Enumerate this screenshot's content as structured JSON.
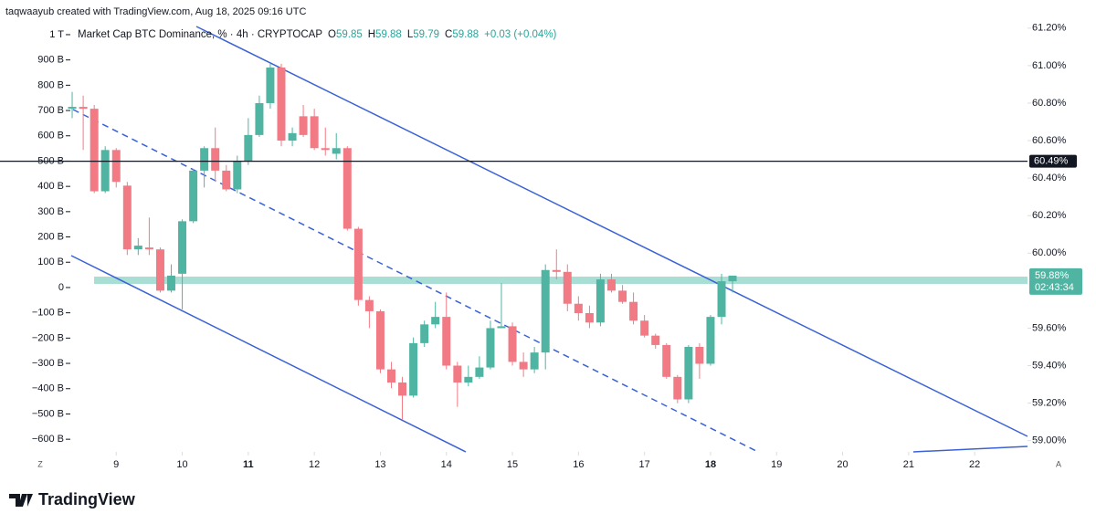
{
  "header": {
    "credit": "taqwaayub created with TradingView.com, Aug 18, 2025 09:16 UTC"
  },
  "logo": {
    "text": "TradingView"
  },
  "buttons": {
    "left": "Z",
    "right": "A"
  },
  "legend": {
    "title": "Market Cap BTC Dominance, % · 4h · CRYPTOCAP",
    "items": [
      {
        "key": "O",
        "value": "59.85"
      },
      {
        "key": "H",
        "value": "59.88"
      },
      {
        "key": "L",
        "value": "59.79"
      },
      {
        "key": "C",
        "value": "59.88"
      }
    ],
    "change": "+0.03 (+0.04%)"
  },
  "chart_data": {
    "type": "candlestick",
    "up_color": "#4fb5a2",
    "down_color": "#f27a85",
    "x": [
      8.333,
      8.5,
      8.667,
      8.833,
      9,
      9.167,
      9.333,
      9.5,
      9.667,
      9.833,
      10,
      10.167,
      10.333,
      10.5,
      10.667,
      10.833,
      11,
      11.167,
      11.333,
      11.5,
      11.667,
      11.833,
      12,
      12.167,
      12.333,
      12.5,
      12.667,
      12.833,
      13,
      13.167,
      13.333,
      13.5,
      13.667,
      13.833,
      14,
      14.167,
      14.333,
      14.5,
      14.667,
      14.833,
      15,
      15.167,
      15.333,
      15.5,
      15.667,
      15.833,
      16,
      16.167,
      16.333,
      16.5,
      16.667,
      16.833,
      17,
      17.167,
      17.333,
      17.5,
      17.667,
      17.833,
      18,
      18.167,
      18.333
    ],
    "open": [
      60.77,
      60.78,
      60.77,
      60.33,
      60.55,
      60.36,
      60.02,
      60.03,
      60.02,
      59.8,
      59.89,
      60.17,
      60.44,
      60.56,
      60.44,
      60.34,
      60.49,
      60.63,
      60.8,
      60.99,
      60.6,
      60.73,
      60.73,
      60.56,
      60.53,
      60.56,
      60.13,
      59.75,
      59.69,
      59.38,
      59.31,
      59.24,
      59.52,
      59.62,
      59.66,
      59.4,
      59.31,
      59.34,
      59.39,
      59.6,
      59.61,
      59.42,
      59.38,
      59.47,
      59.91,
      59.9,
      59.73,
      59.68,
      59.63,
      59.86,
      59.8,
      59.74,
      59.64,
      59.56,
      59.51,
      59.34,
      59.22,
      59.5,
      59.41,
      59.66,
      59.85
    ],
    "high": [
      60.86,
      60.84,
      60.79,
      60.57,
      60.56,
      60.38,
      60.08,
      60.19,
      60.03,
      59.94,
      60.18,
      60.45,
      60.57,
      60.67,
      60.47,
      60.52,
      60.72,
      60.84,
      61.01,
      61.01,
      60.67,
      60.79,
      60.77,
      60.67,
      60.64,
      60.57,
      60.14,
      59.77,
      59.7,
      59.42,
      59.34,
      59.55,
      59.64,
      59.74,
      59.79,
      59.42,
      59.4,
      59.45,
      59.64,
      59.84,
      59.63,
      59.47,
      59.5,
      59.94,
      60.02,
      59.94,
      59.77,
      59.72,
      59.89,
      59.89,
      59.83,
      59.79,
      59.67,
      59.57,
      59.52,
      59.35,
      59.51,
      59.52,
      59.67,
      59.89,
      59.88
    ],
    "low": [
      60.72,
      60.55,
      60.32,
      60.32,
      60.35,
      59.99,
      59.99,
      59.99,
      59.79,
      59.79,
      59.7,
      60.16,
      60.35,
      60.38,
      60.33,
      60.32,
      60.47,
      60.62,
      60.77,
      60.57,
      60.57,
      60.62,
      60.55,
      60.52,
      60.5,
      60.12,
      59.72,
      59.6,
      59.36,
      59.28,
      59.11,
      59.23,
      59.5,
      59.6,
      59.38,
      59.18,
      59.29,
      59.33,
      59.38,
      59.6,
      59.4,
      59.34,
      59.36,
      59.38,
      59.86,
      59.69,
      59.64,
      59.6,
      59.61,
      59.79,
      59.73,
      59.62,
      59.55,
      59.49,
      59.33,
      59.2,
      59.2,
      59.33,
      59.4,
      59.62,
      59.79
    ],
    "close": [
      60.78,
      60.77,
      60.33,
      60.55,
      60.38,
      60.02,
      60.04,
      60.02,
      59.8,
      59.88,
      60.17,
      60.44,
      60.56,
      60.44,
      60.34,
      60.49,
      60.63,
      60.8,
      60.99,
      60.6,
      60.64,
      60.63,
      60.56,
      60.55,
      60.56,
      60.13,
      59.75,
      59.69,
      59.38,
      59.31,
      59.24,
      59.52,
      59.62,
      59.66,
      59.4,
      59.31,
      59.34,
      59.39,
      59.6,
      59.61,
      59.42,
      59.38,
      59.47,
      59.91,
      59.9,
      59.73,
      59.68,
      59.63,
      59.86,
      59.8,
      59.74,
      59.64,
      59.56,
      59.51,
      59.34,
      59.22,
      59.5,
      59.41,
      59.66,
      59.85,
      59.88
    ],
    "xlim": [
      7.24,
      22.8
    ],
    "xticks": [
      9,
      10,
      11,
      12,
      13,
      14,
      15,
      16,
      17,
      18,
      19,
      20,
      21,
      22
    ],
    "xticks_bold": [
      11,
      18
    ],
    "ylim": [
      58.94,
      61.35
    ],
    "yticks": [
      {
        "value": 59.0,
        "label": "59.00%"
      },
      {
        "value": 59.2,
        "label": "59.20%"
      },
      {
        "value": 59.4,
        "label": "59.40%"
      },
      {
        "value": 59.6,
        "label": "59.60%"
      },
      {
        "value": 60.0,
        "label": "60.00%"
      },
      {
        "value": 60.2,
        "label": "60.20%"
      },
      {
        "value": 60.4,
        "label": "60.40%"
      },
      {
        "value": 60.6,
        "label": "60.60%"
      },
      {
        "value": 60.8,
        "label": "60.80%"
      },
      {
        "value": 61.0,
        "label": "61.00%"
      },
      {
        "value": 61.2,
        "label": "61.20%"
      }
    ],
    "y2lim": [
      -650,
      1137
    ],
    "y2ticks": [
      {
        "value": -600,
        "label": "−600 B"
      },
      {
        "value": -500,
        "label": "−500 B"
      },
      {
        "value": -400,
        "label": "−400 B"
      },
      {
        "value": -300,
        "label": "−300 B"
      },
      {
        "value": -200,
        "label": "−200 B"
      },
      {
        "value": -100,
        "label": "−100 B"
      },
      0,
      {
        "value": 100,
        "label": "100 B"
      },
      {
        "value": 200,
        "label": "200 B"
      },
      {
        "value": 300,
        "label": "300 B"
      },
      {
        "value": 400,
        "label": "400 B"
      },
      {
        "value": 500,
        "label": "500 B"
      },
      {
        "value": 600,
        "label": "600 B"
      },
      {
        "value": 700,
        "label": "700 B"
      },
      {
        "value": 800,
        "label": "800 B"
      },
      {
        "value": 900,
        "label": "900 B"
      },
      {
        "value": 1000,
        "label": "1 T"
      }
    ],
    "price_line": {
      "value": 60.49,
      "label": "60.49%"
    },
    "last_price": {
      "value": 59.88,
      "label": "59.88%",
      "countdown": "02:43:34"
    }
  }
}
